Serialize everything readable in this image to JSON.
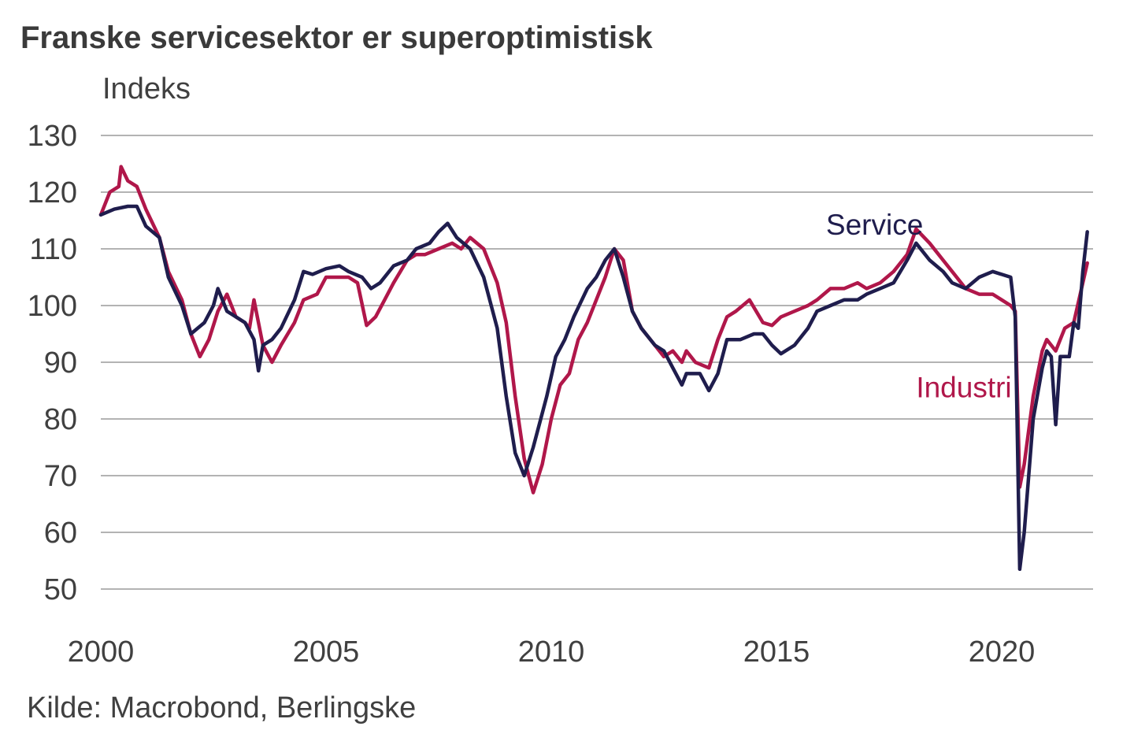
{
  "title": "Franske servicesektor er superoptimistisk",
  "source": "Kilde: Macrobond, Berlingske",
  "colors": {
    "service": "#1f1d4d",
    "industri": "#b0174a",
    "grid": "#9a9a9a"
  },
  "chart_data": {
    "type": "line",
    "title": "Franske servicesektor er superoptimistisk",
    "ylabel": "Indeks",
    "xlabel": "",
    "xlim": [
      2000,
      2022.2
    ],
    "ylim": [
      50,
      130
    ],
    "yticks": [
      130,
      120,
      110,
      100,
      90,
      80,
      70,
      60,
      50
    ],
    "xticks": [
      "2000",
      "2005",
      "2010",
      "2015",
      "2020"
    ],
    "grid": true,
    "series": [
      {
        "name": "Service",
        "points": [
          [
            2000.0,
            116
          ],
          [
            2000.3,
            117
          ],
          [
            2000.6,
            117.5
          ],
          [
            2000.8,
            117.5
          ],
          [
            2001.0,
            114
          ],
          [
            2001.3,
            112
          ],
          [
            2001.5,
            105
          ],
          [
            2001.8,
            100
          ],
          [
            2002.0,
            95
          ],
          [
            2002.3,
            97
          ],
          [
            2002.5,
            100
          ],
          [
            2002.6,
            103
          ],
          [
            2002.8,
            99
          ],
          [
            2003.0,
            98
          ],
          [
            2003.2,
            97
          ],
          [
            2003.4,
            94
          ],
          [
            2003.5,
            88.5
          ],
          [
            2003.6,
            93
          ],
          [
            2003.8,
            94
          ],
          [
            2004.0,
            96
          ],
          [
            2004.3,
            101
          ],
          [
            2004.5,
            106
          ],
          [
            2004.7,
            105.5
          ],
          [
            2005.0,
            106.5
          ],
          [
            2005.3,
            107
          ],
          [
            2005.5,
            106
          ],
          [
            2005.8,
            105
          ],
          [
            2006.0,
            103
          ],
          [
            2006.2,
            104
          ],
          [
            2006.5,
            107
          ],
          [
            2006.8,
            108
          ],
          [
            2007.0,
            110
          ],
          [
            2007.3,
            111
          ],
          [
            2007.5,
            113
          ],
          [
            2007.7,
            114.5
          ],
          [
            2007.9,
            112
          ],
          [
            2008.2,
            110
          ],
          [
            2008.5,
            105
          ],
          [
            2008.8,
            96
          ],
          [
            2009.0,
            84
          ],
          [
            2009.2,
            74
          ],
          [
            2009.4,
            70
          ],
          [
            2009.6,
            75
          ],
          [
            2009.9,
            84
          ],
          [
            2010.1,
            91
          ],
          [
            2010.3,
            94
          ],
          [
            2010.5,
            98
          ],
          [
            2010.8,
            103
          ],
          [
            2011.0,
            105
          ],
          [
            2011.2,
            108
          ],
          [
            2011.4,
            110
          ],
          [
            2011.6,
            105
          ],
          [
            2011.8,
            99
          ],
          [
            2012.0,
            96
          ],
          [
            2012.3,
            93
          ],
          [
            2012.5,
            92
          ],
          [
            2012.7,
            89
          ],
          [
            2012.9,
            86
          ],
          [
            2013.0,
            88
          ],
          [
            2013.3,
            88
          ],
          [
            2013.5,
            85
          ],
          [
            2013.7,
            88
          ],
          [
            2013.9,
            94
          ],
          [
            2014.2,
            94
          ],
          [
            2014.5,
            95
          ],
          [
            2014.7,
            95
          ],
          [
            2014.9,
            93
          ],
          [
            2015.1,
            91.5
          ],
          [
            2015.4,
            93
          ],
          [
            2015.7,
            96
          ],
          [
            2015.9,
            99
          ],
          [
            2016.2,
            100
          ],
          [
            2016.5,
            101
          ],
          [
            2016.8,
            101
          ],
          [
            2017.0,
            102
          ],
          [
            2017.3,
            103
          ],
          [
            2017.6,
            104
          ],
          [
            2017.9,
            108
          ],
          [
            2018.1,
            111
          ],
          [
            2018.4,
            108
          ],
          [
            2018.7,
            106
          ],
          [
            2018.9,
            104
          ],
          [
            2019.2,
            103
          ],
          [
            2019.5,
            105
          ],
          [
            2019.8,
            106
          ],
          [
            2020.0,
            105.5
          ],
          [
            2020.2,
            105
          ],
          [
            2020.3,
            98
          ],
          [
            2020.4,
            53.5
          ],
          [
            2020.5,
            60
          ],
          [
            2020.7,
            80
          ],
          [
            2020.9,
            89
          ],
          [
            2021.0,
            92
          ],
          [
            2021.1,
            91
          ],
          [
            2021.2,
            79
          ],
          [
            2021.3,
            91
          ],
          [
            2021.5,
            91
          ],
          [
            2021.6,
            97
          ],
          [
            2021.7,
            96
          ],
          [
            2021.8,
            106
          ],
          [
            2021.9,
            113
          ]
        ]
      },
      {
        "name": "Industri",
        "points": [
          [
            2000.0,
            116
          ],
          [
            2000.2,
            120
          ],
          [
            2000.4,
            121
          ],
          [
            2000.45,
            124.5
          ],
          [
            2000.6,
            122
          ],
          [
            2000.8,
            121
          ],
          [
            2001.0,
            117
          ],
          [
            2001.3,
            112
          ],
          [
            2001.5,
            106
          ],
          [
            2001.8,
            101
          ],
          [
            2002.0,
            95
          ],
          [
            2002.2,
            91
          ],
          [
            2002.4,
            94
          ],
          [
            2002.6,
            99
          ],
          [
            2002.8,
            102
          ],
          [
            2003.0,
            98
          ],
          [
            2003.2,
            97
          ],
          [
            2003.3,
            96
          ],
          [
            2003.4,
            101
          ],
          [
            2003.6,
            93
          ],
          [
            2003.8,
            90
          ],
          [
            2004.0,
            93
          ],
          [
            2004.3,
            97
          ],
          [
            2004.5,
            101
          ],
          [
            2004.8,
            102
          ],
          [
            2005.0,
            105
          ],
          [
            2005.3,
            105
          ],
          [
            2005.5,
            105
          ],
          [
            2005.7,
            104
          ],
          [
            2005.9,
            96.5
          ],
          [
            2006.1,
            98
          ],
          [
            2006.3,
            101
          ],
          [
            2006.5,
            104
          ],
          [
            2006.8,
            108
          ],
          [
            2007.0,
            109
          ],
          [
            2007.2,
            109
          ],
          [
            2007.5,
            110
          ],
          [
            2007.8,
            111
          ],
          [
            2008.0,
            110
          ],
          [
            2008.2,
            112
          ],
          [
            2008.5,
            110
          ],
          [
            2008.8,
            104
          ],
          [
            2009.0,
            97
          ],
          [
            2009.2,
            84
          ],
          [
            2009.4,
            73
          ],
          [
            2009.6,
            67
          ],
          [
            2009.8,
            72
          ],
          [
            2010.0,
            80
          ],
          [
            2010.2,
            86
          ],
          [
            2010.4,
            88
          ],
          [
            2010.6,
            94
          ],
          [
            2010.8,
            97
          ],
          [
            2011.0,
            101
          ],
          [
            2011.2,
            105
          ],
          [
            2011.4,
            110
          ],
          [
            2011.6,
            108
          ],
          [
            2011.8,
            99
          ],
          [
            2012.0,
            96
          ],
          [
            2012.3,
            93
          ],
          [
            2012.5,
            91
          ],
          [
            2012.7,
            92
          ],
          [
            2012.9,
            90
          ],
          [
            2013.0,
            92
          ],
          [
            2013.2,
            90
          ],
          [
            2013.5,
            89
          ],
          [
            2013.7,
            94
          ],
          [
            2013.9,
            98
          ],
          [
            2014.1,
            99
          ],
          [
            2014.4,
            101
          ],
          [
            2014.7,
            97
          ],
          [
            2014.9,
            96.5
          ],
          [
            2015.1,
            98
          ],
          [
            2015.4,
            99
          ],
          [
            2015.7,
            100
          ],
          [
            2015.9,
            101
          ],
          [
            2016.2,
            103
          ],
          [
            2016.5,
            103
          ],
          [
            2016.8,
            104
          ],
          [
            2017.0,
            103
          ],
          [
            2017.3,
            104
          ],
          [
            2017.6,
            106
          ],
          [
            2017.9,
            109
          ],
          [
            2018.1,
            113.5
          ],
          [
            2018.4,
            111
          ],
          [
            2018.7,
            108
          ],
          [
            2018.9,
            106
          ],
          [
            2019.2,
            103
          ],
          [
            2019.5,
            102
          ],
          [
            2019.8,
            102
          ],
          [
            2020.0,
            101
          ],
          [
            2020.2,
            100
          ],
          [
            2020.3,
            99
          ],
          [
            2020.4,
            68
          ],
          [
            2020.5,
            72
          ],
          [
            2020.7,
            84
          ],
          [
            2020.9,
            92
          ],
          [
            2021.0,
            94
          ],
          [
            2021.1,
            93
          ],
          [
            2021.2,
            92
          ],
          [
            2021.4,
            96
          ],
          [
            2021.6,
            97
          ],
          [
            2021.8,
            104
          ],
          [
            2021.9,
            107.5
          ]
        ]
      }
    ],
    "annotations": [
      {
        "text": "Service",
        "x": 2016.1,
        "y": 112.5,
        "series": "Service"
      },
      {
        "text": "Industri",
        "x": 2018.1,
        "y": 83.8,
        "series": "Industri"
      }
    ]
  }
}
